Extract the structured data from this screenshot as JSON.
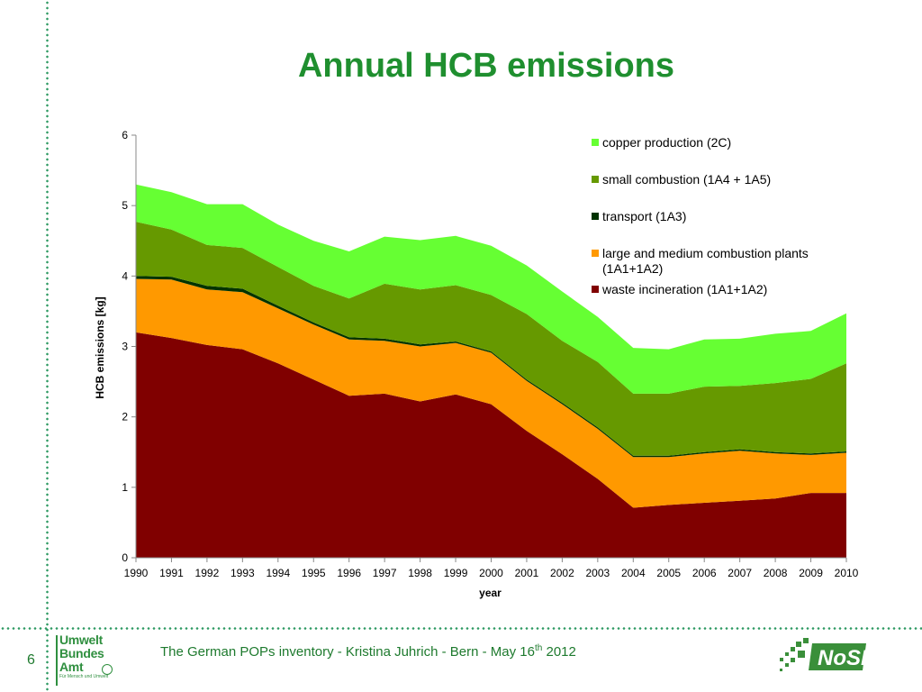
{
  "slide": {
    "title": "Annual HCB emissions",
    "page_number": "6",
    "footer_text": "The German POPs inventory  -  Kristina Juhrich - Bern - May 16",
    "footer_sup": "th",
    "footer_year": " 2012",
    "logo_uba_lines": [
      "Umwelt",
      "Bundes",
      "Amt"
    ],
    "logo_uba_sub": "Für Mensch und Umwelt",
    "logo_nose_text": "NoSE",
    "colors": {
      "accent": "#1f8f2f",
      "dots": "#2e9a63"
    }
  },
  "chart_data": {
    "type": "area",
    "stacked": true,
    "title": "",
    "xlabel": "year",
    "ylabel": "HCB emissions [kg]",
    "ylim": [
      0,
      6
    ],
    "yticks": [
      0,
      1,
      2,
      3,
      4,
      5,
      6
    ],
    "grid": false,
    "legend_position": "top-right",
    "categories": [
      "1990",
      "1991",
      "1992",
      "1993",
      "1994",
      "1995",
      "1996",
      "1997",
      "1998",
      "1999",
      "2000",
      "2001",
      "2002",
      "2003",
      "2004",
      "2005",
      "2006",
      "2007",
      "2008",
      "2009",
      "2010"
    ],
    "series": [
      {
        "name": "waste incineration (1A1+1A2)",
        "color": "#800000",
        "values": [
          3.2,
          3.12,
          3.02,
          2.96,
          2.76,
          2.53,
          2.3,
          2.33,
          2.22,
          2.32,
          2.18,
          1.8,
          1.47,
          1.12,
          0.71,
          0.75,
          0.78,
          0.81,
          0.84,
          0.92,
          0.92
        ]
      },
      {
        "name": "large and medium combustion plants\n(1A1+1A2)",
        "color": "#ff9900",
        "values": [
          0.76,
          0.83,
          0.79,
          0.81,
          0.78,
          0.78,
          0.8,
          0.75,
          0.78,
          0.73,
          0.73,
          0.71,
          0.71,
          0.71,
          0.72,
          0.68,
          0.7,
          0.71,
          0.64,
          0.54,
          0.57
        ]
      },
      {
        "name": "transport (1A3)",
        "color": "#003300",
        "values": [
          0.04,
          0.04,
          0.05,
          0.05,
          0.04,
          0.03,
          0.03,
          0.03,
          0.03,
          0.02,
          0.02,
          0.02,
          0.02,
          0.02,
          0.02,
          0.02,
          0.02,
          0.02,
          0.02,
          0.02,
          0.02
        ]
      },
      {
        "name": "small combustion (1A4 + 1A5)",
        "color": "#669900",
        "values": [
          0.77,
          0.67,
          0.58,
          0.58,
          0.55,
          0.52,
          0.55,
          0.78,
          0.78,
          0.8,
          0.8,
          0.93,
          0.88,
          0.93,
          0.88,
          0.88,
          0.93,
          0.9,
          0.98,
          1.06,
          1.25
        ]
      },
      {
        "name": "copper production (2C)",
        "color": "#66ff33",
        "values": [
          0.53,
          0.53,
          0.58,
          0.62,
          0.6,
          0.64,
          0.67,
          0.67,
          0.7,
          0.7,
          0.7,
          0.69,
          0.7,
          0.64,
          0.65,
          0.63,
          0.67,
          0.67,
          0.7,
          0.68,
          0.71
        ]
      }
    ]
  }
}
